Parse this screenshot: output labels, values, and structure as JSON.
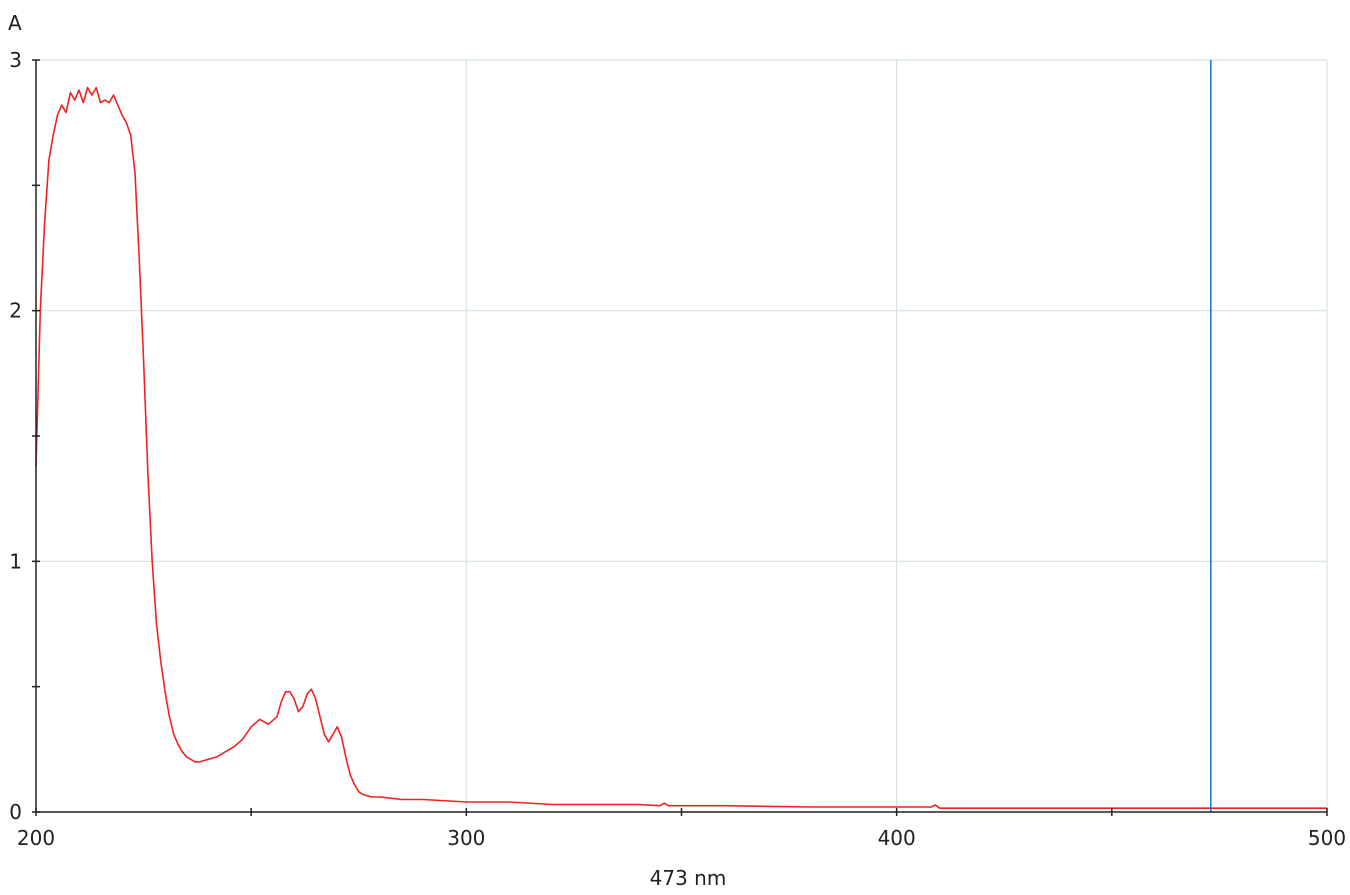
{
  "chart_data": {
    "type": "line",
    "ylabel": "A",
    "xlabel": "473 nm",
    "xlim": [
      200,
      500
    ],
    "ylim": [
      0,
      3
    ],
    "x_ticks": [
      200,
      300,
      400,
      500
    ],
    "y_ticks": [
      0,
      1,
      2,
      3
    ],
    "x_minor_ticks": [
      250,
      350,
      450
    ],
    "y_minor_ticks": [
      0.5,
      1.5,
      2.5
    ],
    "grid": true,
    "cursor_x": 473,
    "colors": {
      "series": "#ee2222",
      "cursor": "#1a7fc8",
      "grid": "#d5e2e5",
      "axis": "#222222"
    },
    "series": [
      {
        "x": [
          200,
          201,
          202,
          203,
          204,
          205,
          206,
          207,
          208,
          209,
          210,
          211,
          212,
          213,
          214,
          215,
          216,
          217,
          218,
          219,
          220,
          221,
          222,
          223,
          224,
          225,
          226,
          227,
          228,
          229,
          230,
          231,
          232,
          233,
          234,
          235,
          236,
          237,
          238,
          240,
          242,
          244,
          246,
          248,
          250,
          252,
          254,
          256,
          257,
          258,
          259,
          260,
          261,
          262,
          263,
          264,
          265,
          266,
          267,
          268,
          269,
          270,
          271,
          272,
          273,
          274,
          275,
          276,
          278,
          280,
          285,
          290,
          300,
          310,
          320,
          330,
          340,
          345,
          346,
          347,
          350,
          360,
          380,
          400,
          408,
          409,
          410,
          412,
          420,
          440,
          460,
          480,
          500
        ],
        "values": [
          1.38,
          2.0,
          2.35,
          2.6,
          2.7,
          2.78,
          2.82,
          2.79,
          2.87,
          2.84,
          2.88,
          2.83,
          2.89,
          2.86,
          2.89,
          2.83,
          2.84,
          2.83,
          2.86,
          2.82,
          2.78,
          2.75,
          2.7,
          2.55,
          2.2,
          1.8,
          1.35,
          1.0,
          0.75,
          0.6,
          0.48,
          0.38,
          0.31,
          0.27,
          0.24,
          0.22,
          0.21,
          0.2,
          0.2,
          0.21,
          0.22,
          0.24,
          0.26,
          0.29,
          0.34,
          0.37,
          0.35,
          0.38,
          0.44,
          0.48,
          0.48,
          0.45,
          0.4,
          0.42,
          0.47,
          0.49,
          0.45,
          0.38,
          0.31,
          0.28,
          0.31,
          0.34,
          0.3,
          0.22,
          0.15,
          0.11,
          0.08,
          0.07,
          0.06,
          0.06,
          0.05,
          0.05,
          0.04,
          0.04,
          0.03,
          0.03,
          0.03,
          0.025,
          0.035,
          0.025,
          0.025,
          0.025,
          0.02,
          0.02,
          0.02,
          0.028,
          0.015,
          0.015,
          0.015,
          0.015,
          0.015,
          0.015,
          0.015
        ]
      }
    ]
  }
}
